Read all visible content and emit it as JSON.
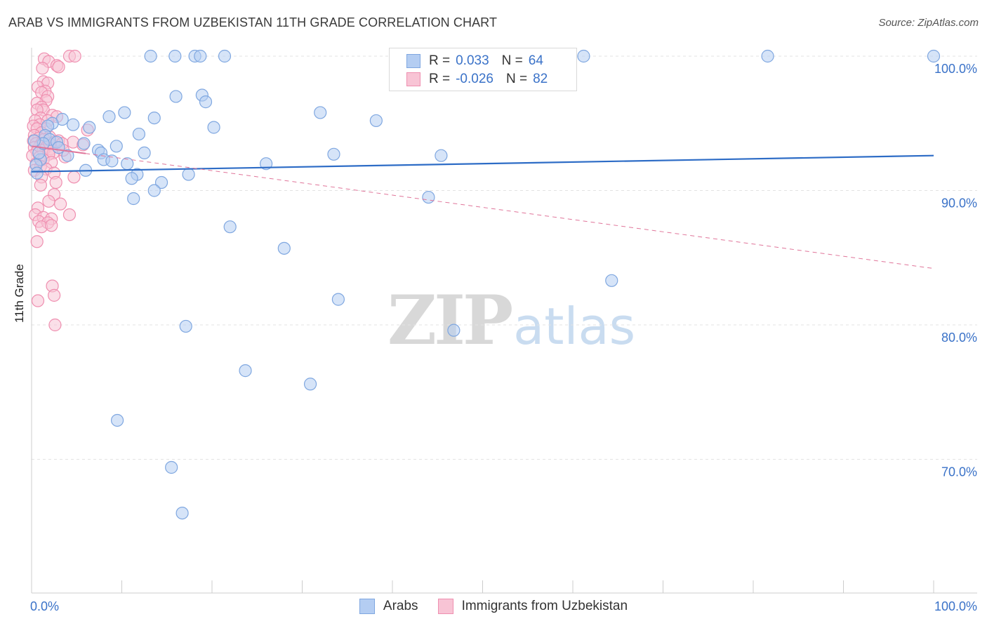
{
  "chart_data": {
    "type": "scatter",
    "title": "ARAB VS IMMIGRANTS FROM UZBEKISTAN 11TH GRADE CORRELATION CHART",
    "source": "Source: ZipAtlas.com",
    "xlabel": "",
    "ylabel": "11th Grade",
    "xlim": [
      0,
      100
    ],
    "ylim": [
      60,
      100
    ],
    "x_tick_labels": [
      "0.0%",
      "100.0%"
    ],
    "y_tick_labels": [
      "100.0%",
      "90.0%",
      "80.0%",
      "70.0%"
    ],
    "y_ticks": [
      100,
      90,
      80,
      70
    ],
    "grid": true,
    "watermark": {
      "brand": "ZIP",
      "suffix": "atlas"
    },
    "legend": {
      "rows": [
        {
          "r_label": "R =",
          "r_value": "0.033",
          "n_label": "N =",
          "n_value": "64"
        },
        {
          "r_label": "R =",
          "r_value": "-0.026",
          "n_label": "N =",
          "n_value": "82"
        }
      ]
    },
    "series": [
      {
        "name": "Arabs",
        "color": "#7fa7e0",
        "fill": "#b4cdf2",
        "line_color": "#2d6cc6",
        "trend": {
          "x": [
            0,
            100
          ],
          "y": [
            91.4,
            92.6
          ]
        },
        "points": [
          [
            13.2,
            100
          ],
          [
            15.9,
            100
          ],
          [
            18.1,
            100
          ],
          [
            18.7,
            100
          ],
          [
            21.4,
            100
          ],
          [
            61.2,
            100
          ],
          [
            81.6,
            100
          ],
          [
            100,
            100
          ],
          [
            16.0,
            97.0
          ],
          [
            18.9,
            97.1
          ],
          [
            19.3,
            96.6
          ],
          [
            8.6,
            95.5
          ],
          [
            10.3,
            95.8
          ],
          [
            13.6,
            95.4
          ],
          [
            32.0,
            95.8
          ],
          [
            38.2,
            95.2
          ],
          [
            3.4,
            95.3
          ],
          [
            2.3,
            95.0
          ],
          [
            1.8,
            94.8
          ],
          [
            4.6,
            94.9
          ],
          [
            20.2,
            94.7
          ],
          [
            6.4,
            94.7
          ],
          [
            11.9,
            94.2
          ],
          [
            1.5,
            94.1
          ],
          [
            5.8,
            93.5
          ],
          [
            2.0,
            93.8
          ],
          [
            9.4,
            93.3
          ],
          [
            7.4,
            93.0
          ],
          [
            7.7,
            92.8
          ],
          [
            12.5,
            92.8
          ],
          [
            33.5,
            92.7
          ],
          [
            45.4,
            92.6
          ],
          [
            4.0,
            92.6
          ],
          [
            8.0,
            92.3
          ],
          [
            8.9,
            92.2
          ],
          [
            10.6,
            92.0
          ],
          [
            26.0,
            92.0
          ],
          [
            1.0,
            92.3
          ],
          [
            0.5,
            91.9
          ],
          [
            6.0,
            91.5
          ],
          [
            11.7,
            91.2
          ],
          [
            17.4,
            91.2
          ],
          [
            0.6,
            91.3
          ],
          [
            11.1,
            90.9
          ],
          [
            14.4,
            90.6
          ],
          [
            13.6,
            90.0
          ],
          [
            0.8,
            92.8
          ],
          [
            1.3,
            93.5
          ],
          [
            2.8,
            93.6
          ],
          [
            11.3,
            89.4
          ],
          [
            44.0,
            89.5
          ],
          [
            22.0,
            87.3
          ],
          [
            28.0,
            85.7
          ],
          [
            64.3,
            83.3
          ],
          [
            34.0,
            81.9
          ],
          [
            17.1,
            79.9
          ],
          [
            46.8,
            79.6
          ],
          [
            23.7,
            76.6
          ],
          [
            30.9,
            75.6
          ],
          [
            9.5,
            72.9
          ],
          [
            15.5,
            69.4
          ],
          [
            16.7,
            66.0
          ],
          [
            3.0,
            93.2
          ],
          [
            0.3,
            93.7
          ]
        ]
      },
      {
        "name": "Immigrants from Uzbekistan",
        "color": "#ef8fb0",
        "fill": "#f8c4d5",
        "line_color": "#e0759a",
        "trend": {
          "x": [
            0,
            100
          ],
          "y": [
            93.3,
            84.2
          ]
        },
        "points": [
          [
            1.4,
            99.8
          ],
          [
            4.2,
            100
          ],
          [
            4.8,
            100
          ],
          [
            1.9,
            99.6
          ],
          [
            2.8,
            99.3
          ],
          [
            1.2,
            99.1
          ],
          [
            3.0,
            99.2
          ],
          [
            1.3,
            98.1
          ],
          [
            1.8,
            98.0
          ],
          [
            0.7,
            97.7
          ],
          [
            1.5,
            97.4
          ],
          [
            1.1,
            97.3
          ],
          [
            1.8,
            97.0
          ],
          [
            1.6,
            96.7
          ],
          [
            0.6,
            96.5
          ],
          [
            1.1,
            96.2
          ],
          [
            1.3,
            96.0
          ],
          [
            0.6,
            96.0
          ],
          [
            2.3,
            95.6
          ],
          [
            2.8,
            95.5
          ],
          [
            1.0,
            95.4
          ],
          [
            0.4,
            95.2
          ],
          [
            1.8,
            95.2
          ],
          [
            0.9,
            94.9
          ],
          [
            0.2,
            94.8
          ],
          [
            1.6,
            94.6
          ],
          [
            0.6,
            94.6
          ],
          [
            6.2,
            94.5
          ],
          [
            1.1,
            94.3
          ],
          [
            0.3,
            94.1
          ],
          [
            2.0,
            94.0
          ],
          [
            0.8,
            93.9
          ],
          [
            1.4,
            93.8
          ],
          [
            3.0,
            93.7
          ],
          [
            0.2,
            93.7
          ],
          [
            2.5,
            93.6
          ],
          [
            4.6,
            93.6
          ],
          [
            0.5,
            93.5
          ],
          [
            1.1,
            93.5
          ],
          [
            3.4,
            93.5
          ],
          [
            5.7,
            93.4
          ],
          [
            0.9,
            93.3
          ],
          [
            1.6,
            93.2
          ],
          [
            0.3,
            93.2
          ],
          [
            2.1,
            93.1
          ],
          [
            1.3,
            93.0
          ],
          [
            0.6,
            92.9
          ],
          [
            2.4,
            92.8
          ],
          [
            1.9,
            92.7
          ],
          [
            0.1,
            92.6
          ],
          [
            0.9,
            92.5
          ],
          [
            3.7,
            92.5
          ],
          [
            1.3,
            92.3
          ],
          [
            2.2,
            92.1
          ],
          [
            0.5,
            92.0
          ],
          [
            1.0,
            91.8
          ],
          [
            1.6,
            91.6
          ],
          [
            0.3,
            91.5
          ],
          [
            2.5,
            91.3
          ],
          [
            1.1,
            91.0
          ],
          [
            4.7,
            91.0
          ],
          [
            2.7,
            90.6
          ],
          [
            1.0,
            90.4
          ],
          [
            2.5,
            89.7
          ],
          [
            3.2,
            89.0
          ],
          [
            1.9,
            89.2
          ],
          [
            0.7,
            88.7
          ],
          [
            0.4,
            88.2
          ],
          [
            4.2,
            88.2
          ],
          [
            1.3,
            88.0
          ],
          [
            2.2,
            87.9
          ],
          [
            0.8,
            87.7
          ],
          [
            1.8,
            87.6
          ],
          [
            1.1,
            87.3
          ],
          [
            2.2,
            87.4
          ],
          [
            0.6,
            86.2
          ],
          [
            2.3,
            82.9
          ],
          [
            2.5,
            82.2
          ],
          [
            0.7,
            81.8
          ],
          [
            2.6,
            80.0
          ],
          [
            2.0,
            93.5
          ],
          [
            3.5,
            93.0
          ]
        ]
      }
    ]
  }
}
